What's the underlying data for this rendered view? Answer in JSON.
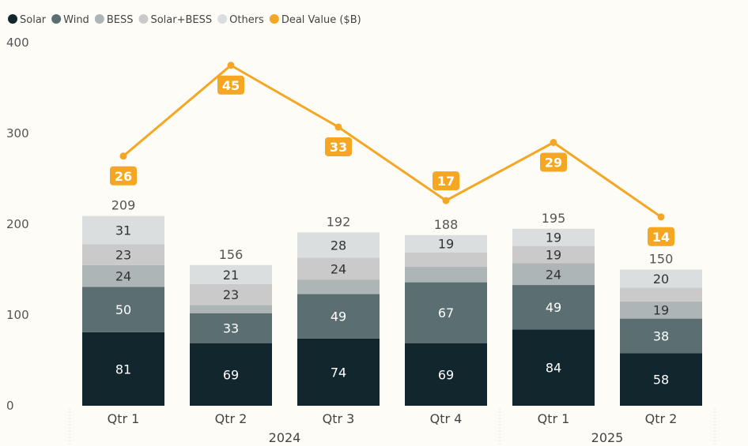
{
  "chart_data": {
    "type": "bar",
    "stacked": true,
    "categories": [
      "Qtr 1",
      "Qtr 2",
      "Qtr 3",
      "Qtr 4",
      "Qtr 1",
      "Qtr 2"
    ],
    "groups": [
      {
        "label": "2024",
        "count": 4
      },
      {
        "label": "2025",
        "count": 2
      }
    ],
    "series": [
      {
        "name": "Solar",
        "color": "#12262d",
        "values": [
          81,
          69,
          74,
          69,
          84,
          58
        ],
        "shown": [
          true,
          true,
          true,
          true,
          true,
          true
        ]
      },
      {
        "name": "Wind",
        "color": "#5b6e72",
        "values": [
          50,
          33,
          49,
          67,
          49,
          38
        ],
        "shown": [
          true,
          true,
          true,
          true,
          true,
          true
        ]
      },
      {
        "name": "BESS",
        "color": "#adb5b7",
        "values": [
          24,
          9,
          16,
          17,
          24,
          19
        ],
        "shown": [
          true,
          false,
          false,
          false,
          true,
          true
        ]
      },
      {
        "name": "Solar+BESS",
        "color": "#cacaca",
        "values": [
          23,
          23,
          24,
          16,
          19,
          15
        ],
        "shown": [
          true,
          true,
          true,
          false,
          true,
          false
        ]
      },
      {
        "name": "Others",
        "color": "#dadedf",
        "values": [
          31,
          21,
          28,
          19,
          19,
          20
        ],
        "shown": [
          true,
          true,
          true,
          true,
          true,
          true
        ]
      }
    ],
    "totals": [
      209,
      156,
      192,
      188,
      195,
      150
    ],
    "line": {
      "name": "Deal Value ($B)",
      "color": "#f5a623",
      "values": [
        26,
        45,
        33,
        17,
        29,
        14
      ],
      "positions": [
        275,
        375,
        307,
        226,
        290,
        208
      ]
    },
    "title": "",
    "xlabel": "",
    "ylabel": "",
    "ylim": [
      0,
      400
    ],
    "yticks": [
      0,
      100,
      200,
      300,
      400
    ],
    "grid": false,
    "legend_position": "top-left"
  }
}
